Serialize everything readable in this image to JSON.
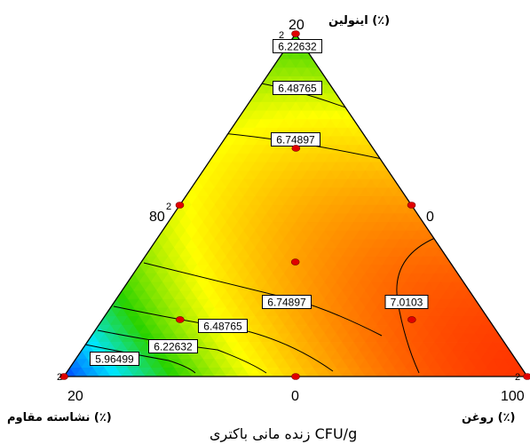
{
  "chart_data": {
    "type": "ternary-contour",
    "title": "",
    "response_label": "زنده مانی باکتری CFU/g",
    "components": [
      {
        "key": "inulin",
        "name": "اینولین (٪)",
        "vertex_tick": "20",
        "side_tick": "0"
      },
      {
        "key": "starch",
        "name": "نشاسته مقاوم (٪)",
        "vertex_tick": "20",
        "side_tick": "80"
      },
      {
        "key": "oil",
        "name": "روغن (٪)",
        "vertex_tick": "100",
        "side_tick": "0"
      }
    ],
    "bottom_mid_tick": "0",
    "left_mid_tick": "80",
    "right_mid_tick": "0",
    "design_point_replicate": "2",
    "contour_levels": [
      5.96499,
      6.22632,
      6.48765,
      6.74897,
      7.0103
    ],
    "contour_labels": [
      {
        "text": "6.22632",
        "level": 6.22632
      },
      {
        "text": "6.48765",
        "level": 6.48765
      },
      {
        "text": "6.74897",
        "level": 6.74897
      },
      {
        "text": "6.74897",
        "level": 6.74897
      },
      {
        "text": "6.48765",
        "level": 6.48765
      },
      {
        "text": "6.22632",
        "level": 6.22632
      },
      {
        "text": "5.96499",
        "level": 5.96499
      },
      {
        "text": "7.0103",
        "level": 7.0103
      }
    ],
    "design_points": [
      {
        "inulin": 1,
        "starch": 0,
        "oil": 0,
        "replicates": 2
      },
      {
        "inulin": 0,
        "starch": 1,
        "oil": 0,
        "replicates": 2
      },
      {
        "inulin": 0,
        "starch": 0,
        "oil": 1,
        "replicates": 2
      },
      {
        "inulin": 0.5,
        "starch": 0.5,
        "oil": 0,
        "replicates": 2
      },
      {
        "inulin": 0.5,
        "starch": 0,
        "oil": 0.5
      },
      {
        "inulin": 0,
        "starch": 0.5,
        "oil": 0.5
      },
      {
        "inulin": 0.333,
        "starch": 0.333,
        "oil": 0.333
      },
      {
        "inulin": 0.667,
        "starch": 0.167,
        "oil": 0.167
      },
      {
        "inulin": 0.167,
        "starch": 0.667,
        "oil": 0.167
      },
      {
        "inulin": 0.167,
        "starch": 0.167,
        "oil": 0.667
      }
    ],
    "colors": {
      "low": "#0055ff",
      "mid": "#ffff00",
      "high": "#ff3300",
      "point": "#e00000"
    }
  }
}
